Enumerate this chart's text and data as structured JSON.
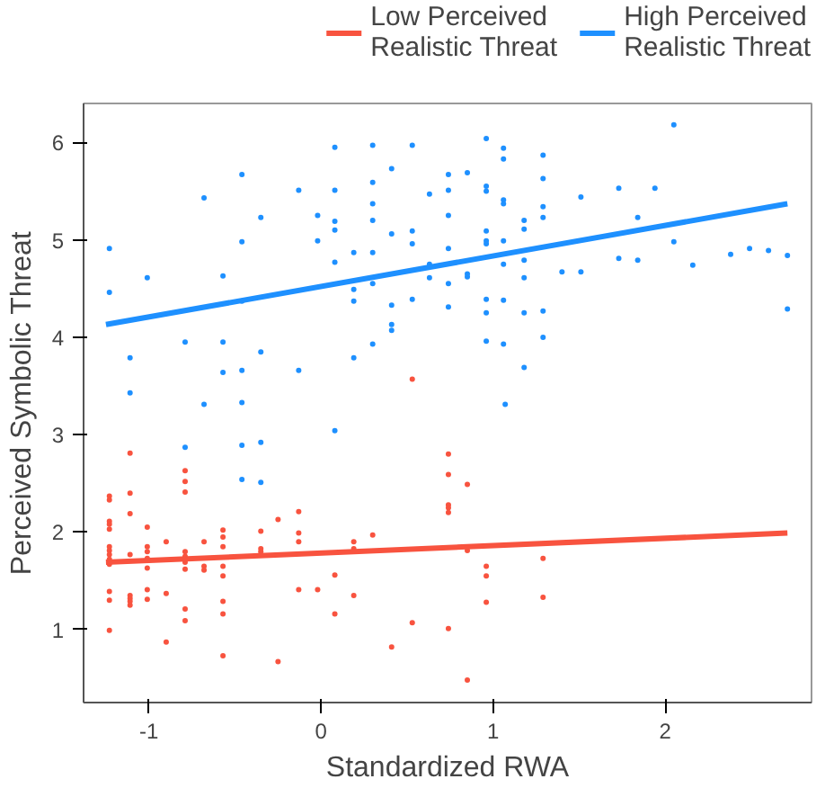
{
  "chart_data": {
    "type": "scatter",
    "xlabel": "Standardized RWA",
    "ylabel": "Perceived Symbolic Threat",
    "xlim": [
      -1.38,
      2.85
    ],
    "ylim": [
      0.25,
      6.4
    ],
    "xticks": [
      -1,
      0,
      1,
      2
    ],
    "yticks": [
      1,
      2,
      3,
      4,
      5,
      6
    ],
    "grid": false,
    "legend": "top",
    "series": [
      {
        "color": "#1e90ff",
        "marker": "circle",
        "x": [
          -1.23,
          -1.23,
          -1.11,
          -1.11,
          -1.01,
          -0.68,
          -0.79,
          -0.57,
          -0.57,
          -0.57,
          -0.46,
          -0.46,
          -0.46,
          -0.46,
          -0.35,
          -0.35,
          -0.13,
          -0.13,
          -0.02,
          -0.02,
          0.08,
          0.08,
          0.08,
          0.08,
          0.08,
          0.19,
          0.19,
          0.19,
          0.19,
          0.3,
          0.3,
          0.3,
          0.3,
          0.3,
          0.3,
          0.3,
          0.41,
          0.41,
          0.41,
          0.41,
          0.41,
          0.53,
          0.53,
          0.53,
          0.53,
          0.63,
          0.63,
          0.63,
          0.74,
          0.74,
          0.74,
          0.74,
          0.74,
          0.74,
          -0.68,
          -0.46,
          -0.79,
          -0.46,
          -0.35,
          -0.46,
          -0.35,
          0.08,
          0.85,
          0.85,
          0.85,
          0.96,
          0.96,
          0.96,
          0.96,
          0.96,
          0.96,
          0.96,
          0.96,
          0.96,
          1.06,
          1.06,
          1.06,
          1.06,
          1.06,
          1.06,
          1.06,
          1.06,
          1.18,
          1.18,
          1.18,
          1.18,
          1.18,
          1.18,
          1.29,
          1.29,
          1.29,
          1.29,
          1.29,
          1.29,
          1.4,
          1.51,
          1.51,
          1.73,
          1.73,
          1.84,
          1.84,
          1.94,
          2.05,
          2.05,
          2.16,
          2.38,
          2.49,
          2.6,
          2.71,
          2.71,
          1.07
        ],
        "values": [
          4.91,
          4.46,
          3.79,
          3.43,
          4.61,
          5.43,
          3.95,
          4.63,
          3.95,
          3.64,
          5.67,
          4.98,
          4.37,
          3.66,
          5.23,
          3.85,
          5.51,
          3.66,
          5.25,
          4.99,
          5.95,
          5.51,
          5.19,
          5.1,
          4.77,
          4.87,
          4.49,
          4.37,
          3.79,
          5.97,
          5.59,
          5.37,
          5.2,
          4.87,
          4.55,
          3.93,
          5.73,
          5.06,
          4.33,
          4.13,
          4.07,
          5.97,
          5.09,
          4.96,
          4.39,
          5.47,
          4.61,
          4.75,
          5.67,
          5.25,
          4.91,
          4.31,
          5.51,
          4.55,
          3.31,
          3.33,
          2.87,
          2.89,
          2.92,
          2.54,
          2.51,
          3.04,
          5.69,
          4.65,
          4.62,
          6.04,
          5.55,
          5.5,
          5.09,
          4.99,
          4.96,
          4.39,
          4.25,
          3.96,
          5.94,
          5.83,
          5.41,
          5.37,
          4.99,
          4.75,
          4.38,
          3.93,
          5.2,
          5.11,
          4.79,
          4.61,
          4.25,
          3.69,
          5.87,
          5.63,
          5.34,
          5.23,
          4.27,
          4.0,
          4.67,
          5.44,
          4.67,
          5.53,
          4.81,
          5.23,
          4.79,
          5.53,
          6.18,
          4.98,
          4.74,
          4.85,
          4.91,
          4.89,
          4.84,
          4.29,
          3.31
        ]
      },
      {
        "color": "#f8533f",
        "marker": "circle",
        "x": [
          -1.23,
          -1.23,
          -1.23,
          -1.23,
          -1.23,
          -1.23,
          -1.23,
          -1.23,
          -1.23,
          -1.23,
          -1.23,
          -1.23,
          -1.23,
          -1.11,
          -1.11,
          -1.11,
          -1.11,
          -1.11,
          -1.11,
          -1.11,
          -1.11,
          -1.01,
          -1.01,
          -1.01,
          -1.01,
          -1.01,
          -1.01,
          -1.01,
          -0.9,
          -0.9,
          -0.9,
          -0.79,
          -0.79,
          -0.79,
          -0.79,
          -0.79,
          -0.79,
          -0.79,
          -0.79,
          -0.79,
          -0.68,
          -0.68,
          -0.68,
          -0.57,
          -0.57,
          -0.57,
          -0.57,
          -0.57,
          -0.57,
          -0.57,
          -0.57,
          -0.35,
          -0.35,
          -0.35,
          -0.25,
          -0.25,
          -0.13,
          -0.13,
          -0.13,
          -0.13,
          -0.02,
          0.08,
          0.08,
          0.19,
          0.19,
          0.19,
          0.3,
          0.41,
          0.53,
          0.53,
          0.74,
          0.74,
          0.74,
          0.74,
          0.74,
          0.74,
          0.85,
          0.85,
          0.85,
          0.96,
          0.96,
          0.96,
          1.29,
          1.29
        ],
        "values": [
          2.37,
          2.33,
          2.11,
          2.08,
          2.03,
          1.85,
          1.81,
          1.77,
          1.72,
          1.67,
          1.39,
          1.3,
          0.99,
          2.81,
          2.4,
          2.19,
          1.77,
          1.35,
          1.32,
          1.29,
          1.25,
          2.05,
          1.85,
          1.8,
          1.73,
          1.63,
          1.41,
          1.31,
          1.9,
          1.37,
          0.87,
          2.63,
          2.52,
          2.41,
          1.8,
          1.75,
          1.69,
          1.62,
          1.21,
          1.09,
          1.9,
          1.65,
          1.61,
          2.02,
          1.95,
          1.85,
          1.65,
          1.55,
          1.29,
          1.16,
          0.73,
          2.01,
          1.83,
          1.8,
          2.13,
          0.67,
          2.21,
          1.99,
          1.9,
          1.41,
          1.41,
          1.56,
          1.16,
          1.9,
          1.83,
          1.35,
          1.97,
          0.82,
          1.07,
          3.57,
          2.8,
          2.59,
          2.28,
          2.25,
          2.2,
          1.01,
          2.49,
          1.81,
          0.48,
          1.65,
          1.55,
          1.28,
          1.73,
          1.33
        ]
      },
      {
        "type": "line",
        "name": "Low Perceived Realistic Threat",
        "color": "#f8533f",
        "marker": "none",
        "x": [
          -1.25,
          2.71
        ],
        "values": [
          1.69,
          1.99
        ]
      },
      {
        "type": "line",
        "name": "High Perceived Realistic Threat",
        "color": "#1e90ff",
        "marker": "none",
        "x": [
          -1.25,
          2.71
        ],
        "values": [
          4.13,
          5.37
        ]
      }
    ]
  }
}
